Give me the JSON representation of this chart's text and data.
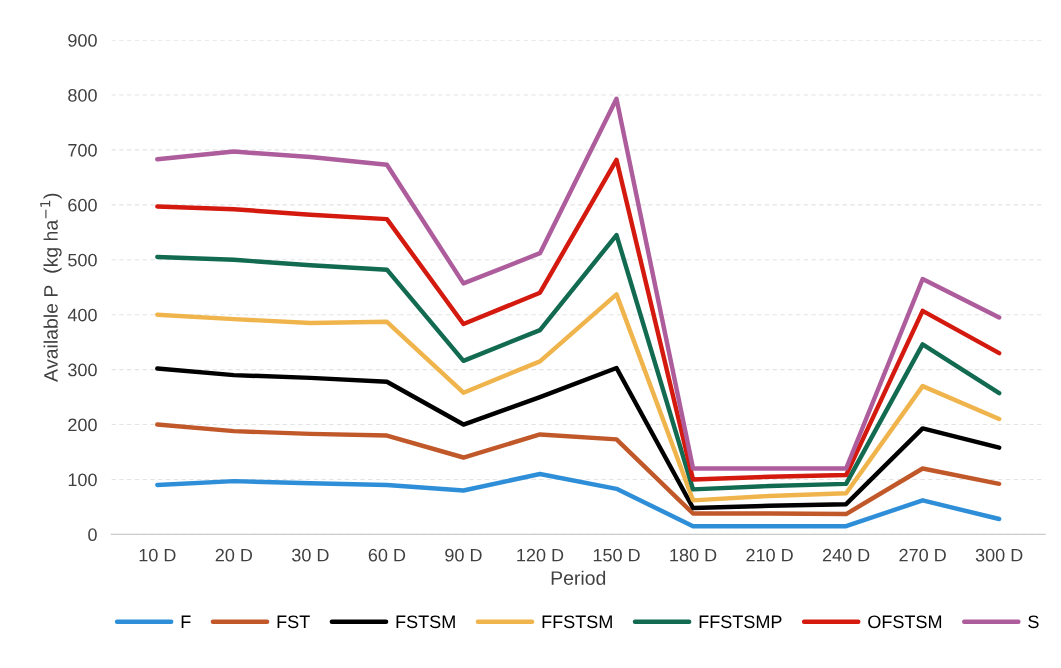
{
  "chart_data": {
    "type": "line",
    "xlabel": "Period",
    "ylabel": "Available P  (kg ha$^{−1}$)",
    "categories": [
      "10 D",
      "20 D",
      "30 D",
      "60 D",
      "90 D",
      "120 D",
      "150 D",
      "180 D",
      "210 D",
      "240 D",
      "270 D",
      "300 D"
    ],
    "series": [
      {
        "name": "F",
        "color": "#2e8fd8",
        "values": [
          90,
          97,
          93,
          90,
          80,
          110,
          83,
          15,
          15,
          15,
          62,
          28
        ]
      },
      {
        "name": "FST",
        "color": "#c0582a",
        "values": [
          200,
          188,
          183,
          180,
          140,
          182,
          173,
          38,
          38,
          37,
          120,
          92
        ]
      },
      {
        "name": "FSTSM",
        "color": "#000000",
        "values": [
          302,
          290,
          285,
          278,
          200,
          250,
          303,
          48,
          52,
          55,
          193,
          158
        ]
      },
      {
        "name": "FFSTSM",
        "color": "#f0b44c",
        "values": [
          400,
          392,
          385,
          387,
          258,
          315,
          437,
          62,
          70,
          75,
          270,
          210
        ]
      },
      {
        "name": "FFSTSMP",
        "color": "#126b50",
        "values": [
          505,
          500,
          490,
          482,
          316,
          372,
          545,
          82,
          88,
          92,
          346,
          257
        ]
      },
      {
        "name": "OFSTSM",
        "color": "#d4190f",
        "values": [
          597,
          592,
          582,
          574,
          383,
          440,
          682,
          100,
          105,
          108,
          407,
          330
        ]
      },
      {
        "name": "S",
        "color": "#ad5c9c",
        "values": [
          683,
          697,
          687,
          673,
          457,
          512,
          793,
          120,
          120,
          120,
          465,
          395
        ]
      }
    ],
    "ylim": [
      0,
      900
    ],
    "yticks": [
      0,
      100,
      200,
      300,
      400,
      500,
      600,
      700,
      800,
      900
    ],
    "grid": "y",
    "legend": "bottom",
    "marker": "none",
    "line_style": "solid"
  }
}
